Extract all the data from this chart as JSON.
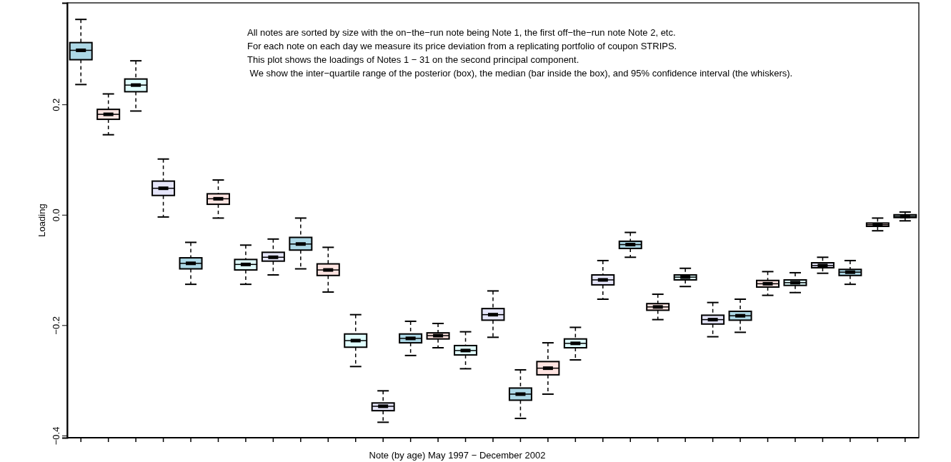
{
  "chart_data": {
    "type": "box",
    "xlabel": "Note (by age) May 1997 − December 2002",
    "ylabel": "Loading",
    "annotations": [
      "All notes are sorted by size with the on−the−run note being Note 1, the first off−the−run note Note 2, etc.",
      "For each note on each day we measure its price deviation from a replicating portfolio of coupon STRIPS.",
      "This plot shows the loadings of Notes 1 − 31 on the second principal component.",
      " We show the inter−quartile range of the posterior (box), the median (bar inside the box), and 95% confidence interval (the whiskers)."
    ],
    "categories": [
      null,
      null,
      null,
      null,
      null,
      null,
      null,
      null,
      null,
      null,
      null,
      null,
      null,
      null,
      null,
      null,
      null,
      null,
      null,
      null,
      null,
      null,
      null,
      null,
      null,
      null,
      null,
      null,
      null,
      null,
      null
    ],
    "ylim": [
      -0.404,
      0.384
    ],
    "yticks": [
      {
        "value": -0.4,
        "label": "−0.4"
      },
      {
        "value": -0.2,
        "label": "−0.2"
      },
      {
        "value": 0,
        "label": "0.0"
      },
      0.2
    ],
    "tick_labels": "y",
    "grid": false,
    "colors": [
      "#add8e6",
      "#ffe4e1",
      "#e0ffff",
      "#e6e6fa",
      "#add8e6",
      "#ffe4e1",
      "#e0ffff",
      "#e6e6fa",
      "#add8e6",
      "#ffe4e1",
      "#e0ffff",
      "#e6e6fa",
      "#add8e6",
      "#ffe4e1",
      "#e0ffff",
      "#e6e6fa",
      "#add8e6",
      "#ffe4e1",
      "#e0ffff",
      "#e6e6fa",
      "#add8e6",
      "#ffe4e1",
      "#e0ffff",
      "#e6e6fa",
      "#add8e6",
      "#ffe4e1",
      "#e0ffff",
      "#e6e6fa",
      "#add8e6",
      "#ffe4e1",
      "#e0ffff"
    ],
    "boxes": [
      {
        "low": 0.236,
        "q1": 0.281,
        "median": 0.298,
        "q3": 0.312,
        "high": 0.354
      },
      {
        "low": 0.145,
        "q1": 0.173,
        "median": 0.182,
        "q3": 0.191,
        "high": 0.219
      },
      {
        "low": 0.188,
        "q1": 0.223,
        "median": 0.235,
        "q3": 0.246,
        "high": 0.279
      },
      {
        "low": -0.004,
        "q1": 0.035,
        "median": 0.048,
        "q3": 0.061,
        "high": 0.101
      },
      {
        "low": -0.126,
        "q1": -0.098,
        "median": -0.088,
        "q3": -0.078,
        "high": -0.05
      },
      {
        "low": -0.006,
        "q1": 0.019,
        "median": 0.029,
        "q3": 0.038,
        "high": 0.063
      },
      {
        "low": -0.126,
        "q1": -0.1,
        "median": -0.09,
        "q3": -0.081,
        "high": -0.055
      },
      {
        "low": -0.109,
        "q1": -0.084,
        "median": -0.077,
        "q3": -0.068,
        "high": -0.044
      },
      {
        "low": -0.098,
        "q1": -0.064,
        "median": -0.053,
        "q3": -0.041,
        "high": -0.006
      },
      {
        "low": -0.14,
        "q1": -0.11,
        "median": -0.1,
        "q3": -0.089,
        "high": -0.059
      },
      {
        "low": -0.275,
        "q1": -0.24,
        "median": -0.228,
        "q3": -0.216,
        "high": -0.181
      },
      {
        "low": -0.376,
        "q1": -0.355,
        "median": -0.347,
        "q3": -0.341,
        "high": -0.319
      },
      {
        "low": -0.255,
        "q1": -0.232,
        "median": -0.224,
        "q3": -0.216,
        "high": -0.193
      },
      {
        "low": -0.241,
        "q1": -0.225,
        "median": -0.219,
        "q3": -0.214,
        "high": -0.197
      },
      {
        "low": -0.279,
        "q1": -0.254,
        "median": -0.246,
        "q3": -0.237,
        "high": -0.212
      },
      {
        "low": -0.222,
        "q1": -0.191,
        "median": -0.181,
        "q3": -0.17,
        "high": -0.138
      },
      {
        "low": -0.369,
        "q1": -0.336,
        "median": -0.325,
        "q3": -0.314,
        "high": -0.281
      },
      {
        "low": -0.325,
        "q1": -0.29,
        "median": -0.278,
        "q3": -0.266,
        "high": -0.232
      },
      {
        "low": -0.263,
        "q1": -0.241,
        "median": -0.233,
        "q3": -0.225,
        "high": -0.204
      },
      {
        "low": -0.153,
        "q1": -0.127,
        "median": -0.118,
        "q3": -0.109,
        "high": -0.083
      },
      {
        "low": -0.077,
        "q1": -0.061,
        "median": -0.054,
        "q3": -0.048,
        "high": -0.032
      },
      {
        "low": -0.19,
        "q1": -0.173,
        "median": -0.167,
        "q3": -0.161,
        "high": -0.144
      },
      {
        "low": -0.13,
        "q1": -0.118,
        "median": -0.113,
        "q3": -0.109,
        "high": -0.097
      },
      {
        "low": -0.221,
        "q1": -0.198,
        "median": -0.19,
        "q3": -0.182,
        "high": -0.159
      },
      {
        "low": -0.213,
        "q1": -0.191,
        "median": -0.183,
        "q3": -0.175,
        "high": -0.153
      },
      {
        "low": -0.146,
        "q1": -0.131,
        "median": -0.125,
        "q3": -0.119,
        "high": -0.103
      },
      {
        "low": -0.141,
        "q1": -0.128,
        "median": -0.123,
        "q3": -0.118,
        "high": -0.105
      },
      {
        "low": -0.106,
        "q1": -0.096,
        "median": -0.092,
        "q3": -0.087,
        "high": -0.077
      },
      {
        "low": -0.126,
        "q1": -0.11,
        "median": -0.104,
        "q3": -0.099,
        "high": -0.083
      },
      {
        "low": -0.029,
        "q1": -0.021,
        "median": -0.018,
        "q3": -0.015,
        "high": -0.006
      },
      {
        "low": -0.011,
        "q1": -0.005,
        "median": -0.003,
        "q3": 0.0,
        "high": 0.005
      }
    ]
  }
}
